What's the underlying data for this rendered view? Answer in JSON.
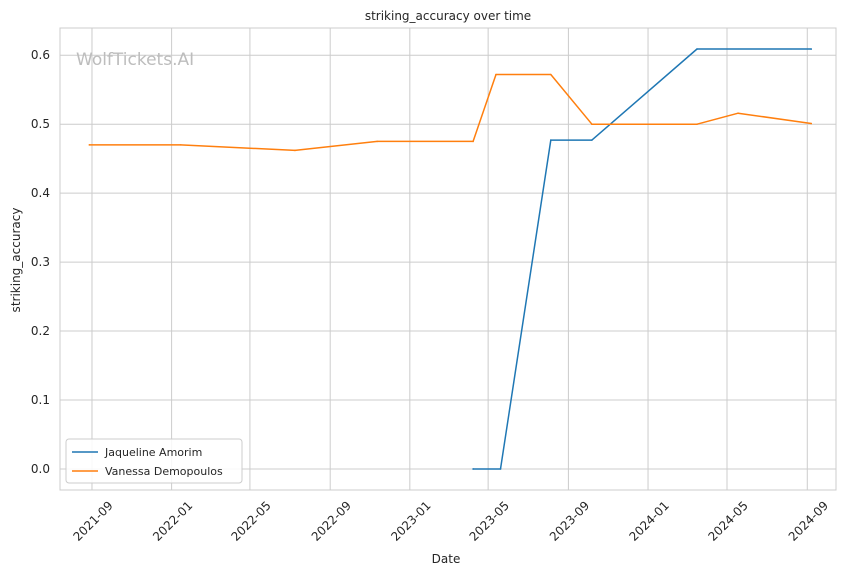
{
  "watermark": "WolfTickets.AI",
  "chart_data": {
    "type": "line",
    "title": "striking_accuracy over time",
    "xlabel": "Date",
    "ylabel": "striking_accuracy",
    "x_axis_type": "date",
    "xlim": [
      "2021-07-14",
      "2024-10-15"
    ],
    "ylim": [
      -0.0305,
      0.6395
    ],
    "x_ticks": [
      "2021-09",
      "2022-01",
      "2022-05",
      "2022-09",
      "2023-01",
      "2023-05",
      "2023-09",
      "2024-01",
      "2024-05",
      "2024-09"
    ],
    "y_ticks": [
      "0.0",
      "0.1",
      "0.2",
      "0.3",
      "0.4",
      "0.5",
      "0.6"
    ],
    "grid": true,
    "legend_position": "lower-left",
    "series": [
      {
        "name": "Jaqueline Amorim",
        "color": "#1f77b4",
        "x": [
          "2023-04-08",
          "2023-05-20",
          "2023-08-05",
          "2023-10-07",
          "2024-03-16",
          "2024-09-07"
        ],
        "y": [
          0.0,
          0.0,
          0.477,
          0.477,
          0.609,
          0.609
        ]
      },
      {
        "name": "Vanessa Demopoulos",
        "color": "#ff7f0e",
        "x": [
          "2021-08-28",
          "2022-01-15",
          "2022-07-09",
          "2022-11-12",
          "2023-04-08",
          "2023-05-13",
          "2023-08-05",
          "2023-10-07",
          "2024-03-16",
          "2024-05-18",
          "2024-09-07"
        ],
        "y": [
          0.47,
          0.47,
          0.462,
          0.475,
          0.475,
          0.572,
          0.572,
          0.5,
          0.5,
          0.516,
          0.501
        ]
      }
    ]
  }
}
